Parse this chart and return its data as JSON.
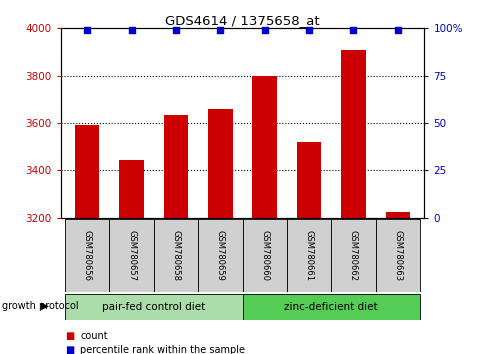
{
  "title": "GDS4614 / 1375658_at",
  "samples": [
    "GSM780656",
    "GSM780657",
    "GSM780658",
    "GSM780659",
    "GSM780660",
    "GSM780661",
    "GSM780662",
    "GSM780663"
  ],
  "counts": [
    3590,
    3445,
    3635,
    3660,
    3800,
    3520,
    3910,
    3225
  ],
  "percentile_ranks": [
    99,
    99,
    99,
    99,
    99,
    99,
    99,
    99
  ],
  "ylim_left": [
    3200,
    4000
  ],
  "ylim_right": [
    0,
    100
  ],
  "yticks_left": [
    3200,
    3400,
    3600,
    3800,
    4000
  ],
  "yticks_right": [
    0,
    25,
    50,
    75,
    100
  ],
  "ytick_labels_right": [
    "0",
    "25",
    "50",
    "75",
    "100%"
  ],
  "bar_color": "#cc0000",
  "dot_color": "#0000cc",
  "groups": [
    {
      "label": "pair-fed control diet",
      "start": 0,
      "end": 4,
      "color": "#aaddaa"
    },
    {
      "label": "zinc-deficient diet",
      "start": 4,
      "end": 8,
      "color": "#55cc55"
    }
  ],
  "group_label_prefix": "growth protocol",
  "legend_items": [
    {
      "label": "count",
      "color": "#cc0000"
    },
    {
      "label": "percentile rank within the sample",
      "color": "#0000cc"
    }
  ],
  "background_color": "#ffffff",
  "tick_label_color_left": "#cc0000",
  "tick_label_color_right": "#0000cc",
  "bar_width": 0.55,
  "dotted_gridlines": [
    3400,
    3600,
    3800
  ],
  "sample_label_bg": "#d0d0d0",
  "percentile_dot_size": 25
}
